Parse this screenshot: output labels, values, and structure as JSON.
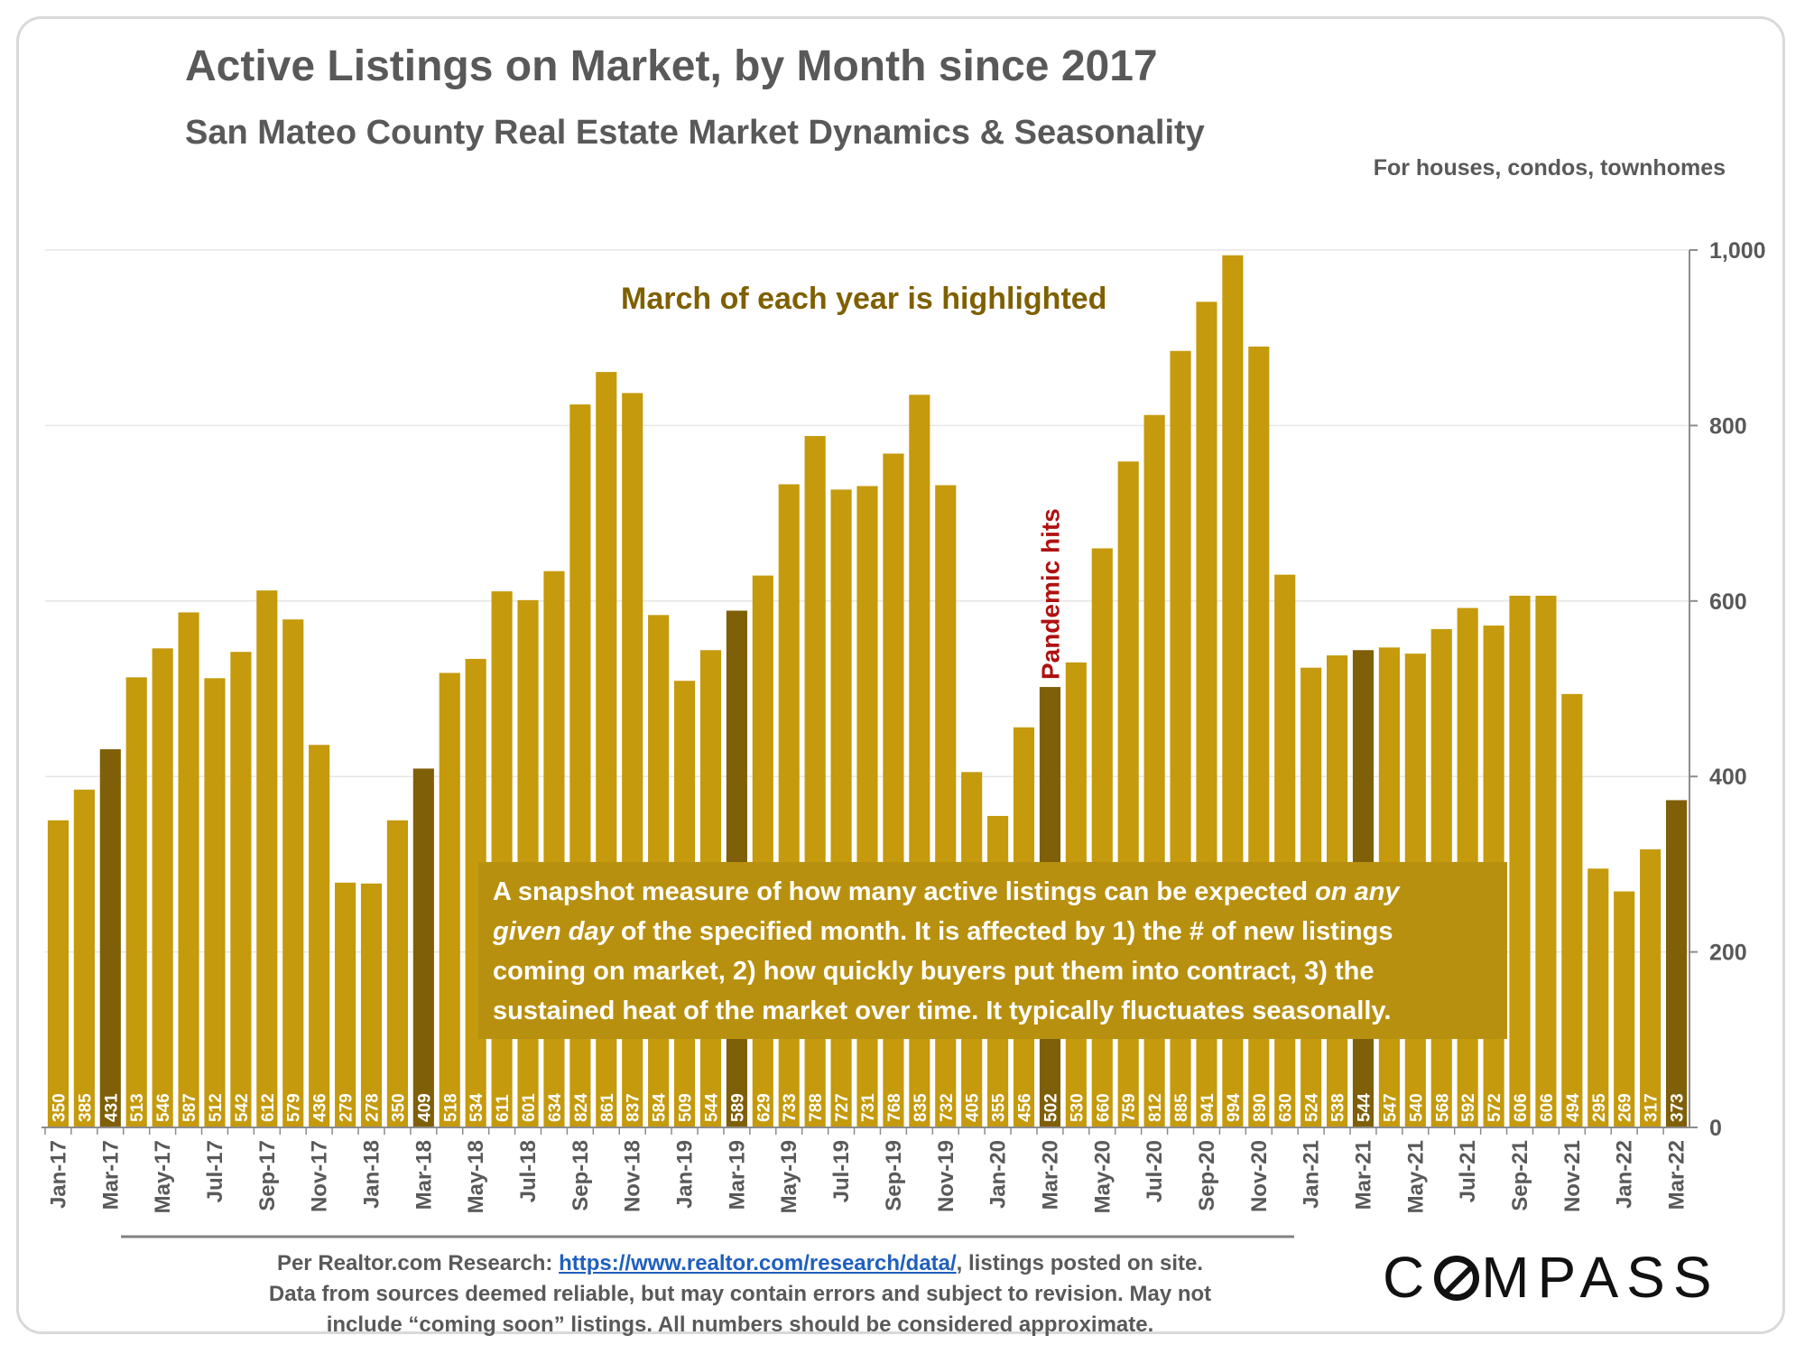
{
  "header": {
    "title": "Active Listings on Market, by Month since 2017",
    "subtitle": "San Mateo County Real Estate Market Dynamics & Seasonality",
    "note": "For houses, condos, townhomes"
  },
  "annotations": {
    "highlight_note": "March of each year is highlighted",
    "pandemic": "Pandemic hits",
    "explanation_parts": [
      {
        "text": "A snapshot measure of how many active listings can be expected ",
        "italic": false
      },
      {
        "text": "on any given day",
        "italic": true
      },
      {
        "text": " of the specified month. It is affected by 1) the # of new listings coming on market, 2) how quickly buyers put them into contract, 3) the sustained heat of the market over time. It typically fluctuates seasonally.",
        "italic": false
      }
    ]
  },
  "footer": {
    "prefix": "Per Realtor.com Research: ",
    "link": "https://www.realtor.com/research/data/",
    "suffix": ", listings posted on site. Data from sources deemed reliable, but may contain errors and subject to revision. May not include “coming soon” listings. All numbers should be considered approximate."
  },
  "logo": {
    "left": "C",
    "right": "MPASS"
  },
  "colors": {
    "bar": "#c59a0c",
    "march_bar": "#7f5f08",
    "explanation_box": "#b8900f",
    "pandemic_text": "#b01010",
    "highlight_text": "#7f6000",
    "axis_text": "#595959"
  },
  "chart_data": {
    "type": "bar",
    "title": "Active Listings on Market, by Month since 2017",
    "subtitle": "San Mateo County Real Estate Market Dynamics & Seasonality",
    "ylim": [
      0,
      1000
    ],
    "y_ticks": [
      "0",
      "200",
      "400",
      "600",
      "800",
      "1,000"
    ],
    "y_tick_values": [
      0,
      200,
      400,
      600,
      800,
      1000
    ],
    "y_axis_position": "right",
    "grid": true,
    "categories": [
      "Jan-17",
      "Feb-17",
      "Mar-17",
      "Apr-17",
      "May-17",
      "Jun-17",
      "Jul-17",
      "Aug-17",
      "Sep-17",
      "Oct-17",
      "Nov-17",
      "Dec-17",
      "Jan-18",
      "Feb-18",
      "Mar-18",
      "Apr-18",
      "May-18",
      "Jun-18",
      "Jul-18",
      "Aug-18",
      "Sep-18",
      "Oct-18",
      "Nov-18",
      "Dec-18",
      "Jan-19",
      "Feb-19",
      "Mar-19",
      "Apr-19",
      "May-19",
      "Jun-19",
      "Jul-19",
      "Aug-19",
      "Sep-19",
      "Oct-19",
      "Nov-19",
      "Dec-19",
      "Jan-20",
      "Feb-20",
      "Mar-20",
      "Apr-20",
      "May-20",
      "Jun-20",
      "Jul-20",
      "Aug-20",
      "Sep-20",
      "Oct-20",
      "Nov-20",
      "Dec-20",
      "Jan-21",
      "Feb-21",
      "Mar-21",
      "Apr-21",
      "May-21",
      "Jun-21",
      "Jul-21",
      "Aug-21",
      "Sep-21",
      "Oct-21",
      "Nov-21",
      "Dec-21",
      "Jan-22",
      "Feb-22",
      "Mar-22"
    ],
    "tick_labels_shown": [
      "Jan-17",
      "Mar-17",
      "May-17",
      "Jul-17",
      "Sep-17",
      "Nov-17",
      "Jan-18",
      "Mar-18",
      "May-18",
      "Jul-18",
      "Sep-18",
      "Nov-18",
      "Jan-19",
      "Mar-19",
      "May-19",
      "Jul-19",
      "Sep-19",
      "Nov-19",
      "Jan-20",
      "Mar-20",
      "May-20",
      "Jul-20",
      "Sep-20",
      "Nov-20",
      "Jan-21",
      "Mar-21",
      "May-21",
      "Jul-21",
      "Sep-21",
      "Nov-21",
      "Jan-22",
      "Mar-22"
    ],
    "values": [
      350,
      385,
      431,
      513,
      546,
      587,
      512,
      542,
      612,
      579,
      436,
      279,
      278,
      350,
      409,
      518,
      534,
      611,
      601,
      634,
      824,
      861,
      837,
      584,
      509,
      544,
      589,
      629,
      733,
      788,
      727,
      731,
      768,
      835,
      732,
      405,
      355,
      456,
      502,
      530,
      660,
      759,
      812,
      885,
      941,
      994,
      890,
      630,
      524,
      538,
      544,
      547,
      540,
      568,
      592,
      572,
      606,
      606,
      494,
      295,
      269,
      317,
      373
    ],
    "highlighted_categories": [
      "Mar-17",
      "Mar-18",
      "Mar-19",
      "Mar-20",
      "Mar-21",
      "Mar-22"
    ]
  }
}
